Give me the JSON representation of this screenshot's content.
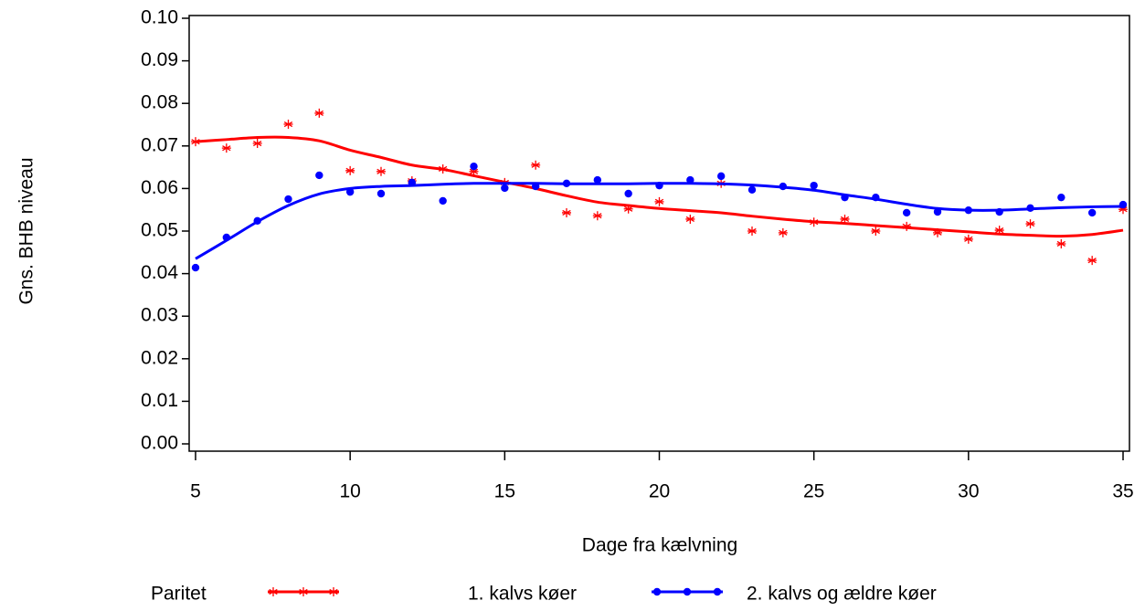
{
  "chart_data": {
    "type": "scatter",
    "y_label": "Gns. BHB niveau",
    "x_label": "Dage fra kælvning",
    "legend_title": "Paritet",
    "x": [
      5,
      6,
      7,
      8,
      9,
      10,
      11,
      12,
      13,
      14,
      15,
      16,
      17,
      18,
      19,
      20,
      21,
      22,
      23,
      24,
      25,
      26,
      27,
      28,
      29,
      30,
      31,
      32,
      33,
      34,
      35
    ],
    "series": [
      {
        "name": "1. kalvs køer",
        "color": "#ff0000",
        "marker": "star",
        "values": [
          0.071,
          0.0695,
          0.0706,
          0.0751,
          0.0777,
          0.0642,
          0.064,
          0.0618,
          0.0646,
          0.064,
          0.0614,
          0.0655,
          0.0543,
          0.0536,
          0.0552,
          0.0569,
          0.0528,
          0.0612,
          0.05,
          0.0496,
          0.0521,
          0.0528,
          0.05,
          0.0511,
          0.0496,
          0.0481,
          0.0502,
          0.0517,
          0.047,
          0.0431,
          0.0551
        ],
        "fit": [
          0.071,
          0.0715,
          0.072,
          0.072,
          0.0712,
          0.069,
          0.0673,
          0.0655,
          0.0645,
          0.063,
          0.0615,
          0.06,
          0.0583,
          0.0568,
          0.056,
          0.0553,
          0.0548,
          0.0543,
          0.0535,
          0.0528,
          0.0522,
          0.0518,
          0.0513,
          0.0508,
          0.0503,
          0.0498,
          0.0493,
          0.049,
          0.0488,
          0.0492,
          0.0502
        ]
      },
      {
        "name": "2. kalvs og ældre køer",
        "color": "#0000ff",
        "marker": "dot",
        "values": [
          0.0414,
          0.0485,
          0.0524,
          0.0575,
          0.0631,
          0.0592,
          0.0588,
          0.0614,
          0.0571,
          0.0652,
          0.0601,
          0.0605,
          0.0612,
          0.062,
          0.0588,
          0.0607,
          0.062,
          0.0629,
          0.0597,
          0.0605,
          0.0607,
          0.0579,
          0.0579,
          0.0543,
          0.0545,
          0.0549,
          0.0545,
          0.0554,
          0.0579,
          0.0543,
          0.0562
        ],
        "fit": [
          0.0435,
          0.0478,
          0.0522,
          0.056,
          0.0587,
          0.06,
          0.0605,
          0.0607,
          0.061,
          0.0612,
          0.0612,
          0.0612,
          0.0611,
          0.0611,
          0.0611,
          0.0612,
          0.0612,
          0.0611,
          0.0608,
          0.0603,
          0.0596,
          0.0585,
          0.0575,
          0.0563,
          0.0553,
          0.0549,
          0.0549,
          0.0552,
          0.0555,
          0.0557,
          0.0558
        ]
      }
    ],
    "xlim": [
      5,
      35
    ],
    "xticks": [
      5,
      10,
      15,
      20,
      25,
      30,
      35
    ],
    "ylim": [
      0,
      0.1
    ],
    "yticks": [
      {
        "value": 0,
        "label": "0.00"
      },
      0.01,
      0.02,
      0.03,
      0.04,
      0.05,
      0.06,
      0.07,
      0.08,
      0.09,
      {
        "value": 0.1,
        "label": "0.10"
      }
    ]
  }
}
